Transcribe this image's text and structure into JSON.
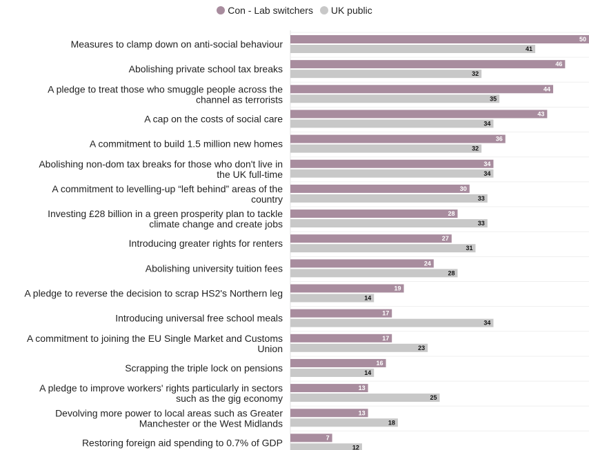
{
  "chart_data": {
    "type": "bar",
    "orientation": "horizontal",
    "legend_position": "top",
    "xlim": [
      0,
      50
    ],
    "categories": [
      [
        "Measures to clamp down on anti-social behaviour"
      ],
      [
        "Abolishing private school tax breaks"
      ],
      [
        "A pledge to treat those who smuggle people across the",
        "channel as terrorists"
      ],
      [
        "A cap on the costs of social care"
      ],
      [
        "A commitment to build 1.5 million new homes"
      ],
      [
        "Abolishing non-dom tax breaks for those who don't live in",
        "the UK full-time"
      ],
      [
        "A commitment to levelling-up “left behind” areas of the",
        "country"
      ],
      [
        "Investing £28 billion in a green prosperity plan to tackle",
        "climate change and create jobs"
      ],
      [
        "Introducing greater rights for renters"
      ],
      [
        "Abolishing university tuition fees"
      ],
      [
        "A pledge to reverse the decision to scrap HS2's Northern leg"
      ],
      [
        "Introducing universal free school meals"
      ],
      [
        "A commitment to joining the EU Single Market and Customs",
        "Union"
      ],
      [
        "Scrapping the triple lock on pensions"
      ],
      [
        "A pledge to improve workers' rights particularly in sectors",
        "such as the gig economy"
      ],
      [
        "Devolving more power to local areas such as Greater",
        "Manchester or the West Midlands"
      ],
      [
        "Restoring foreign aid spending to 0.7% of GDP"
      ]
    ],
    "series": [
      {
        "name": "Con - Lab switchers",
        "color": "#a88c9e",
        "label_color": "#ffffff",
        "values": [
          50,
          46,
          44,
          43,
          36,
          34,
          30,
          28,
          27,
          24,
          19,
          17,
          17,
          16,
          13,
          13,
          7
        ]
      },
      {
        "name": "UK public",
        "color": "#c8c8c8",
        "label_color": "#111111",
        "values": [
          41,
          32,
          35,
          34,
          32,
          34,
          33,
          33,
          31,
          28,
          14,
          34,
          23,
          14,
          25,
          18,
          12
        ]
      }
    ]
  }
}
